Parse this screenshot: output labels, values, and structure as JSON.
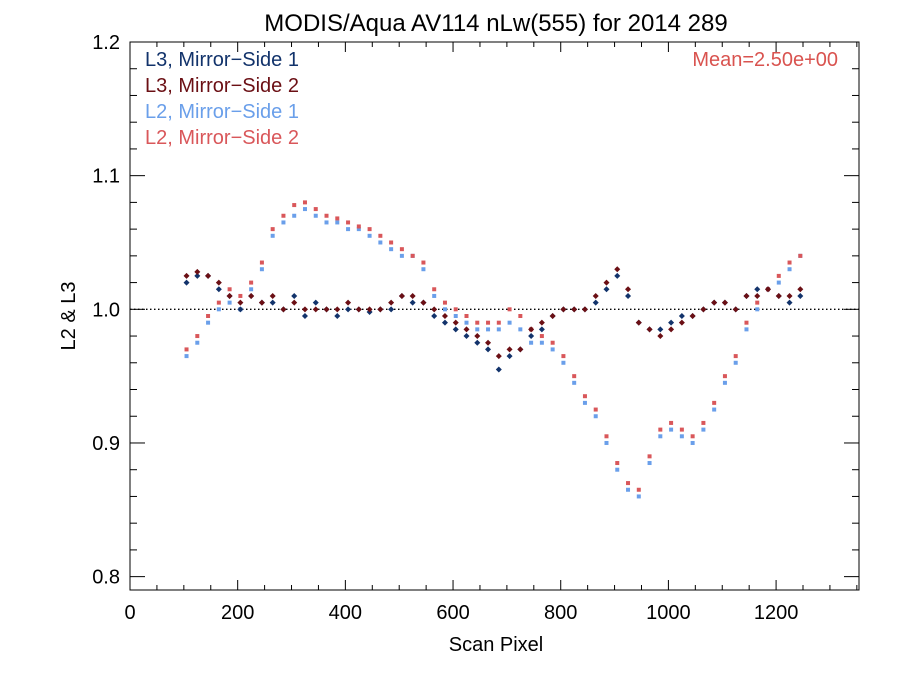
{
  "chart_data": {
    "type": "scatter",
    "title": "MODIS/Aqua AV114 nLw(555) for 2014 289",
    "xlabel": "Scan Pixel",
    "ylabel": "L2 & L3",
    "xlim": [
      0,
      1354
    ],
    "ylim": [
      0.79,
      1.2
    ],
    "x_ticks": [
      0,
      200,
      400,
      600,
      800,
      1000,
      1200
    ],
    "x_tick_labels": [
      "0",
      "200",
      "400",
      "600",
      "800",
      "1000",
      "1200"
    ],
    "y_ticks": [
      0.8,
      0.9,
      1.0,
      1.1,
      1.2
    ],
    "y_tick_labels": [
      "0.8",
      "0.9",
      "1.0",
      "1.1",
      "1.2"
    ],
    "reference_line": 1.0,
    "legend_placement": "top-left",
    "annotation": {
      "text": "Mean=2.50e+00",
      "color": "#d9534f"
    },
    "series": [
      {
        "name": "L3, Mirror−Side 1",
        "color": "#12336b",
        "marker": "diamond",
        "x": [
          105,
          125,
          145,
          165,
          185,
          205,
          225,
          245,
          265,
          285,
          305,
          325,
          345,
          365,
          385,
          405,
          425,
          445,
          465,
          485,
          505,
          525,
          545,
          565,
          585,
          605,
          625,
          645,
          665,
          685,
          705,
          725,
          745,
          765,
          785,
          805,
          825,
          845,
          865,
          885,
          905,
          925,
          945,
          965,
          985,
          1005,
          1025,
          1045,
          1065,
          1085,
          1105,
          1125,
          1145,
          1165,
          1185,
          1205,
          1225,
          1245
        ],
        "y": [
          1.02,
          1.025,
          1.025,
          1.015,
          1.01,
          1.0,
          1.01,
          1.005,
          1.005,
          1.0,
          1.01,
          0.995,
          1.005,
          1.0,
          0.995,
          1.0,
          1.0,
          0.998,
          1.0,
          1.0,
          1.01,
          1.005,
          1.005,
          0.995,
          0.99,
          0.985,
          0.98,
          0.975,
          0.97,
          0.955,
          0.965,
          0.97,
          0.98,
          0.985,
          0.995,
          1.0,
          1.0,
          1.0,
          1.005,
          1.015,
          1.025,
          1.01,
          0.99,
          0.985,
          0.985,
          0.99,
          0.995,
          0.995,
          1.0,
          1.005,
          1.005,
          1.0,
          1.01,
          1.015,
          1.015,
          1.01,
          1.005,
          1.01
        ]
      },
      {
        "name": "L3, Mirror−Side 2",
        "color": "#6b0f14",
        "marker": "diamond",
        "x": [
          105,
          125,
          145,
          165,
          185,
          205,
          225,
          245,
          265,
          285,
          305,
          325,
          345,
          365,
          385,
          405,
          425,
          445,
          465,
          485,
          505,
          525,
          545,
          565,
          585,
          605,
          625,
          645,
          665,
          685,
          705,
          725,
          745,
          765,
          785,
          805,
          825,
          845,
          865,
          885,
          905,
          925,
          945,
          965,
          985,
          1005,
          1025,
          1045,
          1065,
          1085,
          1105,
          1125,
          1145,
          1165,
          1185,
          1205,
          1225,
          1245
        ],
        "y": [
          1.025,
          1.028,
          1.025,
          1.02,
          1.01,
          1.005,
          1.01,
          1.005,
          1.01,
          1.0,
          1.005,
          1.0,
          1.0,
          1.0,
          1.0,
          1.005,
          1.0,
          1.0,
          1.0,
          1.005,
          1.01,
          1.01,
          1.005,
          1.0,
          0.995,
          0.99,
          0.985,
          0.98,
          0.975,
          0.965,
          0.97,
          0.97,
          0.985,
          0.99,
          0.995,
          1.0,
          1.0,
          1.0,
          1.01,
          1.02,
          1.03,
          1.015,
          0.99,
          0.985,
          0.98,
          0.985,
          0.99,
          0.995,
          1.0,
          1.005,
          1.005,
          1.0,
          1.01,
          1.01,
          1.015,
          1.01,
          1.01,
          1.015
        ]
      },
      {
        "name": "L2, Mirror−Side 1",
        "color": "#6a9fea",
        "marker": "square",
        "x": [
          105,
          125,
          145,
          165,
          185,
          205,
          225,
          245,
          265,
          285,
          305,
          325,
          345,
          365,
          385,
          405,
          425,
          445,
          465,
          485,
          505,
          525,
          545,
          565,
          585,
          605,
          625,
          645,
          665,
          685,
          705,
          725,
          745,
          765,
          785,
          805,
          825,
          845,
          865,
          885,
          905,
          925,
          945,
          965,
          985,
          1005,
          1025,
          1045,
          1065,
          1085,
          1105,
          1125,
          1145,
          1165,
          1185,
          1205,
          1225,
          1245
        ],
        "y": [
          0.965,
          0.975,
          0.99,
          1.0,
          1.005,
          1.0,
          1.015,
          1.03,
          1.055,
          1.065,
          1.07,
          1.075,
          1.07,
          1.065,
          1.065,
          1.06,
          1.06,
          1.055,
          1.05,
          1.045,
          1.04,
          1.04,
          1.03,
          1.01,
          1.0,
          0.995,
          0.99,
          0.985,
          0.985,
          0.985,
          0.99,
          0.985,
          0.975,
          0.975,
          0.97,
          0.96,
          0.945,
          0.93,
          0.92,
          0.9,
          0.88,
          0.865,
          0.86,
          0.885,
          0.905,
          0.91,
          0.905,
          0.9,
          0.91,
          0.925,
          0.945,
          0.96,
          0.985,
          1.0,
          1.015,
          1.02,
          1.03,
          1.04
        ]
      },
      {
        "name": "L2, Mirror−Side 2",
        "color": "#d9575a",
        "marker": "square",
        "x": [
          105,
          125,
          145,
          165,
          185,
          205,
          225,
          245,
          265,
          285,
          305,
          325,
          345,
          365,
          385,
          405,
          425,
          445,
          465,
          485,
          505,
          525,
          545,
          565,
          585,
          605,
          625,
          645,
          665,
          685,
          705,
          725,
          745,
          765,
          785,
          805,
          825,
          845,
          865,
          885,
          905,
          925,
          945,
          965,
          985,
          1005,
          1025,
          1045,
          1065,
          1085,
          1105,
          1125,
          1145,
          1165,
          1185,
          1205,
          1225,
          1245
        ],
        "y": [
          0.97,
          0.98,
          0.995,
          1.005,
          1.015,
          1.01,
          1.02,
          1.035,
          1.06,
          1.07,
          1.078,
          1.08,
          1.075,
          1.07,
          1.068,
          1.065,
          1.062,
          1.06,
          1.055,
          1.05,
          1.045,
          1.04,
          1.035,
          1.015,
          1.005,
          1.0,
          0.995,
          0.99,
          0.99,
          0.99,
          1.0,
          0.995,
          0.985,
          0.98,
          0.975,
          0.965,
          0.95,
          0.935,
          0.925,
          0.905,
          0.885,
          0.87,
          0.865,
          0.89,
          0.91,
          0.915,
          0.91,
          0.905,
          0.915,
          0.93,
          0.95,
          0.965,
          0.99,
          1.005,
          1.015,
          1.025,
          1.035,
          1.04
        ]
      }
    ]
  }
}
